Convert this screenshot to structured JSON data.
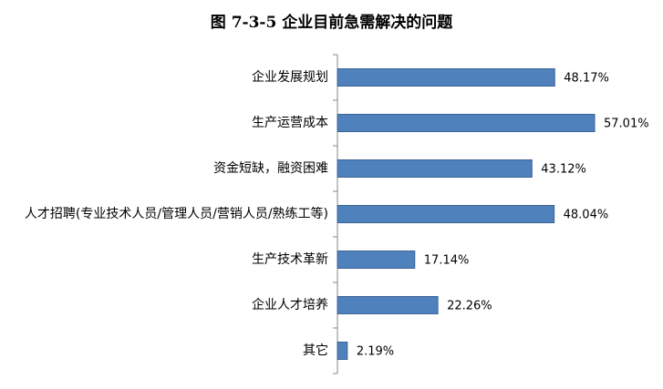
{
  "chart_data": {
    "type": "bar",
    "orientation": "horizontal",
    "title": "图 7-3-5 企业目前急需解决的问题",
    "categories": [
      "企业发展规划",
      "生产运营成本",
      "资金短缺，融资困难",
      "人才招聘(专业技术人员/管理人员/营销人员/熟练工等)",
      "生产技术革新",
      "企业人才培养",
      "其它"
    ],
    "values": [
      48.17,
      57.01,
      43.12,
      48.04,
      17.14,
      22.26,
      2.19
    ],
    "value_labels": [
      "48.17%",
      "57.01%",
      "43.12%",
      "48.04%",
      "17.14%",
      "22.26%",
      "2.19%"
    ],
    "color": "#4f81bd"
  }
}
